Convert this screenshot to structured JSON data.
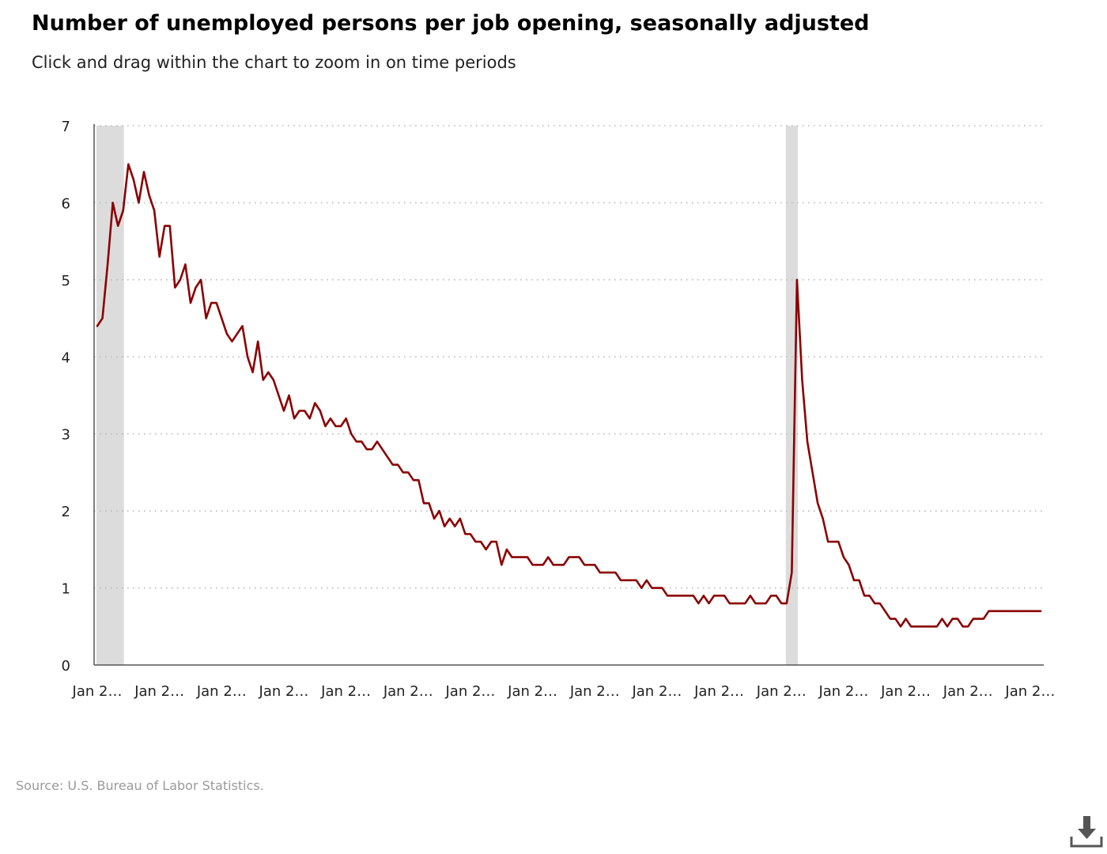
{
  "title": "Number of unemployed persons per job opening, seasonally adjusted",
  "subtitle": "Click and drag within the chart to zoom in on time periods",
  "source": "Source: U.S. Bureau of Labor Statistics.",
  "colors": {
    "line": "#8b0000",
    "recession_band": "#dcdcdc",
    "gridline": "#bbbbbb",
    "axis": "#555555",
    "source_text": "#9a9a9a",
    "download_icon": "#555555"
  },
  "icons": {
    "download": "download-icon"
  },
  "chart_data": {
    "type": "line",
    "title": "Number of unemployed persons per job opening, seasonally adjusted",
    "xlabel": "",
    "ylabel": "",
    "ylim": [
      0,
      7
    ],
    "yticks": [
      0,
      1,
      2,
      3,
      4,
      5,
      6,
      7
    ],
    "grid": "horizontal dotted",
    "x_tick_labels": [
      "Jan 2…",
      "Jan 2…",
      "Jan 2…",
      "Jan 2…",
      "Jan 2…",
      "Jan 2…",
      "Jan 2…",
      "Jan 2…",
      "Jan 2…",
      "Jan 2…",
      "Jan 2…",
      "Jan 2…",
      "Jan 2…",
      "Jan 2…",
      "Jan 2…",
      "Jan 2…"
    ],
    "x_tick_index": [
      0,
      12,
      24,
      36,
      48,
      60,
      72,
      84,
      96,
      108,
      120,
      132,
      144,
      156,
      168,
      180
    ],
    "recession_shading_index": [
      [
        0,
        5
      ],
      [
        133,
        135
      ]
    ],
    "series": [
      {
        "values": [
          4.4,
          4.5,
          5.2,
          6.0,
          5.7,
          5.9,
          6.5,
          6.3,
          6.0,
          6.4,
          6.1,
          5.9,
          5.3,
          5.7,
          5.7,
          4.9,
          5.0,
          5.2,
          4.7,
          4.9,
          5.0,
          4.5,
          4.7,
          4.7,
          4.5,
          4.3,
          4.2,
          4.3,
          4.4,
          4.0,
          3.8,
          4.2,
          3.7,
          3.8,
          3.7,
          3.5,
          3.3,
          3.5,
          3.2,
          3.3,
          3.3,
          3.2,
          3.4,
          3.3,
          3.1,
          3.2,
          3.1,
          3.1,
          3.2,
          3.0,
          2.9,
          2.9,
          2.8,
          2.8,
          2.9,
          2.8,
          2.7,
          2.6,
          2.6,
          2.5,
          2.5,
          2.4,
          2.4,
          2.1,
          2.1,
          1.9,
          2.0,
          1.8,
          1.9,
          1.8,
          1.9,
          1.7,
          1.7,
          1.6,
          1.6,
          1.5,
          1.6,
          1.6,
          1.3,
          1.5,
          1.4,
          1.4,
          1.4,
          1.4,
          1.3,
          1.3,
          1.3,
          1.4,
          1.3,
          1.3,
          1.3,
          1.4,
          1.4,
          1.4,
          1.3,
          1.3,
          1.3,
          1.2,
          1.2,
          1.2,
          1.2,
          1.1,
          1.1,
          1.1,
          1.1,
          1.0,
          1.1,
          1.0,
          1.0,
          1.0,
          0.9,
          0.9,
          0.9,
          0.9,
          0.9,
          0.9,
          0.8,
          0.9,
          0.8,
          0.9,
          0.9,
          0.9,
          0.8,
          0.8,
          0.8,
          0.8,
          0.9,
          0.8,
          0.8,
          0.8,
          0.9,
          0.9,
          0.8,
          0.8,
          1.2,
          5.0,
          3.7,
          2.9,
          2.5,
          2.1,
          1.9,
          1.6,
          1.6,
          1.6,
          1.4,
          1.3,
          1.1,
          1.1,
          0.9,
          0.9,
          0.8,
          0.8,
          0.7,
          0.6,
          0.6,
          0.5,
          0.6,
          0.5,
          0.5,
          0.5,
          0.5,
          0.5,
          0.5,
          0.6,
          0.5,
          0.6,
          0.6,
          0.5,
          0.5,
          0.6,
          0.6,
          0.6,
          0.7,
          0.7,
          0.7,
          0.7,
          0.7,
          0.7,
          0.7,
          0.7,
          0.7,
          0.7,
          0.7
        ]
      }
    ]
  }
}
